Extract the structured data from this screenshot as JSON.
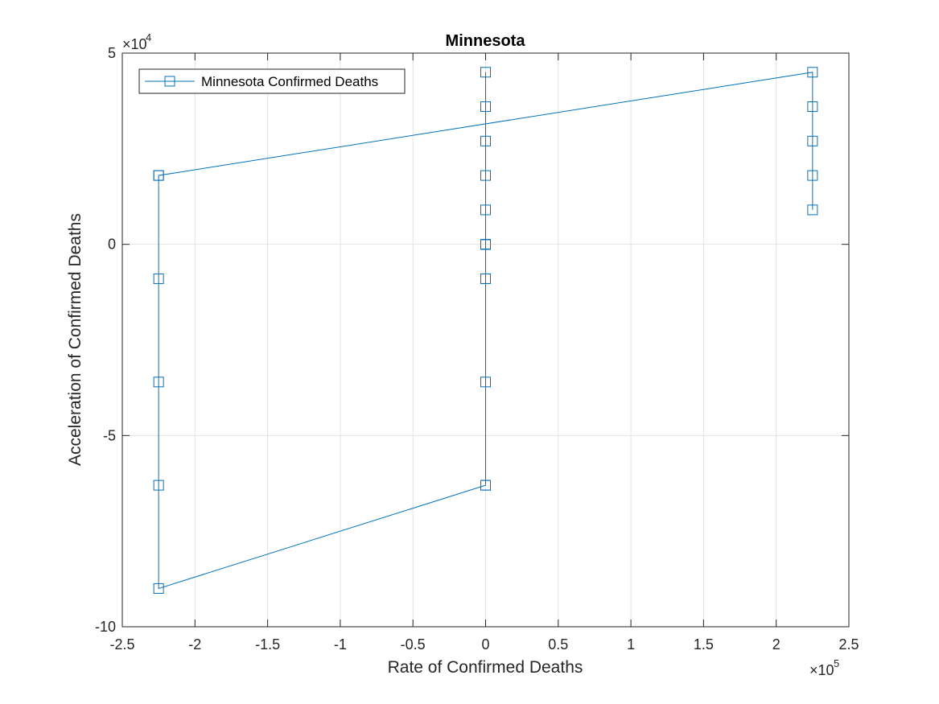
{
  "chart_data": {
    "type": "line",
    "title": "Minnesota",
    "xlabel": "Rate of Confirmed Deaths",
    "ylabel": "Acceleration of Confirmed Deaths",
    "x_multiplier_base": "×10",
    "x_multiplier_exp": "5",
    "y_multiplier_base": "×10",
    "y_multiplier_exp": "4",
    "xlim": [
      -250000,
      250000
    ],
    "ylim": [
      -100000,
      50000
    ],
    "x_ticks": [
      -250000,
      -200000,
      -150000,
      -100000,
      -50000,
      0,
      50000,
      100000,
      150000,
      200000,
      250000
    ],
    "x_tick_labels": [
      "-2.5",
      "-2",
      "-1.5",
      "-1",
      "-0.5",
      "0",
      "0.5",
      "1",
      "1.5",
      "2",
      "2.5"
    ],
    "y_ticks": [
      -100000,
      -50000,
      0,
      50000
    ],
    "y_tick_labels": [
      "-10",
      "-5",
      "0",
      "5"
    ],
    "grid": true,
    "legend_position": "top-left",
    "series": [
      {
        "name": "Minnesota Confirmed Deaths",
        "color": "#0072BD",
        "marker": "square",
        "x": [
          0,
          0,
          0,
          0,
          0,
          0,
          0,
          0,
          0,
          0,
          0,
          0,
          0,
          0,
          0,
          0,
          -225000,
          -225000,
          -225000,
          -225000,
          -225000,
          -225000,
          225000,
          225000,
          225000,
          225000,
          225000
        ],
        "y": [
          0,
          0,
          0,
          0,
          -9000,
          -36000,
          -63000,
          0,
          0,
          9000,
          18000,
          27000,
          36000,
          45000,
          -9000,
          -63000,
          -90000,
          -63000,
          -36000,
          -9000,
          18000,
          18000,
          45000,
          36000,
          27000,
          18000,
          9000
        ]
      }
    ]
  }
}
